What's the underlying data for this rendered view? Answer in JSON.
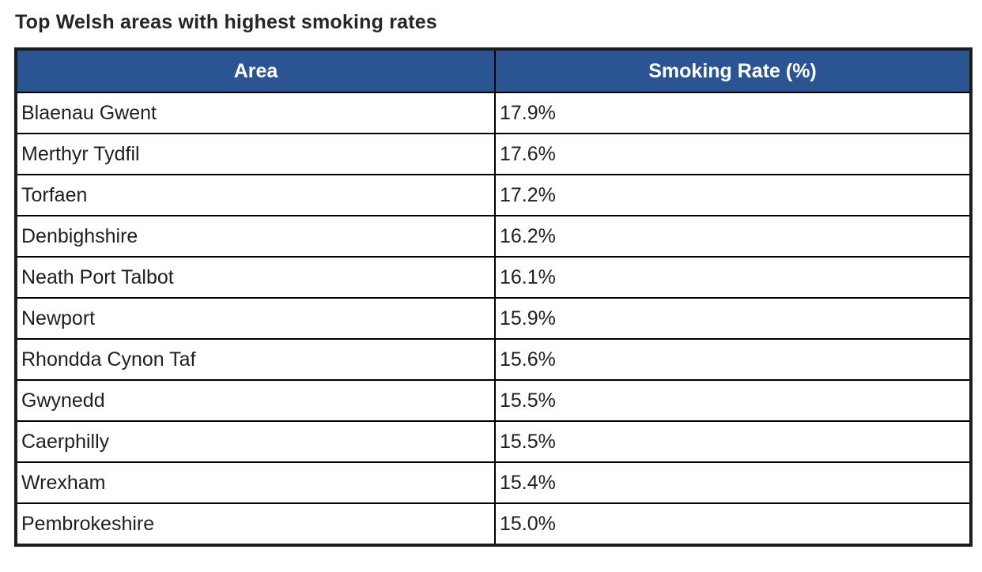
{
  "page": {
    "title": "Top Welsh areas with highest smoking rates"
  },
  "table": {
    "columns": [
      "Area",
      "Smoking Rate (%)"
    ],
    "rows": [
      {
        "area": "Blaenau Gwent",
        "rate": "17.9%"
      },
      {
        "area": "Merthyr Tydfil",
        "rate": "17.6%"
      },
      {
        "area": "Torfaen",
        "rate": "17.2%"
      },
      {
        "area": "Denbighshire",
        "rate": "16.2%"
      },
      {
        "area": "Neath Port Talbot",
        "rate": "16.1%"
      },
      {
        "area": "Newport",
        "rate": "15.9%"
      },
      {
        "area": "Rhondda Cynon Taf",
        "rate": "15.6%"
      },
      {
        "area": "Gwynedd",
        "rate": "15.5%"
      },
      {
        "area": "Caerphilly",
        "rate": "15.5%"
      },
      {
        "area": "Wrexham",
        "rate": "15.4%"
      },
      {
        "area": "Pembrokeshire",
        "rate": "15.0%"
      }
    ]
  },
  "colors": {
    "header_background": "#2B5592",
    "header_text": "#FFFFFF",
    "border": "#000000",
    "outer_border": "#1C1C1C",
    "body_text": "#1F1F1F",
    "title_text": "#262626",
    "page_background": "#FFFFFF"
  },
  "chart_data": {
    "type": "table",
    "title": "Top Welsh areas with highest smoking rates",
    "columns": [
      "Area",
      "Smoking Rate (%)"
    ],
    "categories": [
      "Blaenau Gwent",
      "Merthyr Tydfil",
      "Torfaen",
      "Denbighshire",
      "Neath Port Talbot",
      "Newport",
      "Rhondda Cynon Taf",
      "Gwynedd",
      "Caerphilly",
      "Wrexham",
      "Pembrokeshire"
    ],
    "values": [
      17.9,
      17.6,
      17.2,
      16.2,
      16.1,
      15.9,
      15.6,
      15.5,
      15.5,
      15.4,
      15.0
    ],
    "value_unit": "%",
    "sort_order": "descending by smoking rate"
  }
}
